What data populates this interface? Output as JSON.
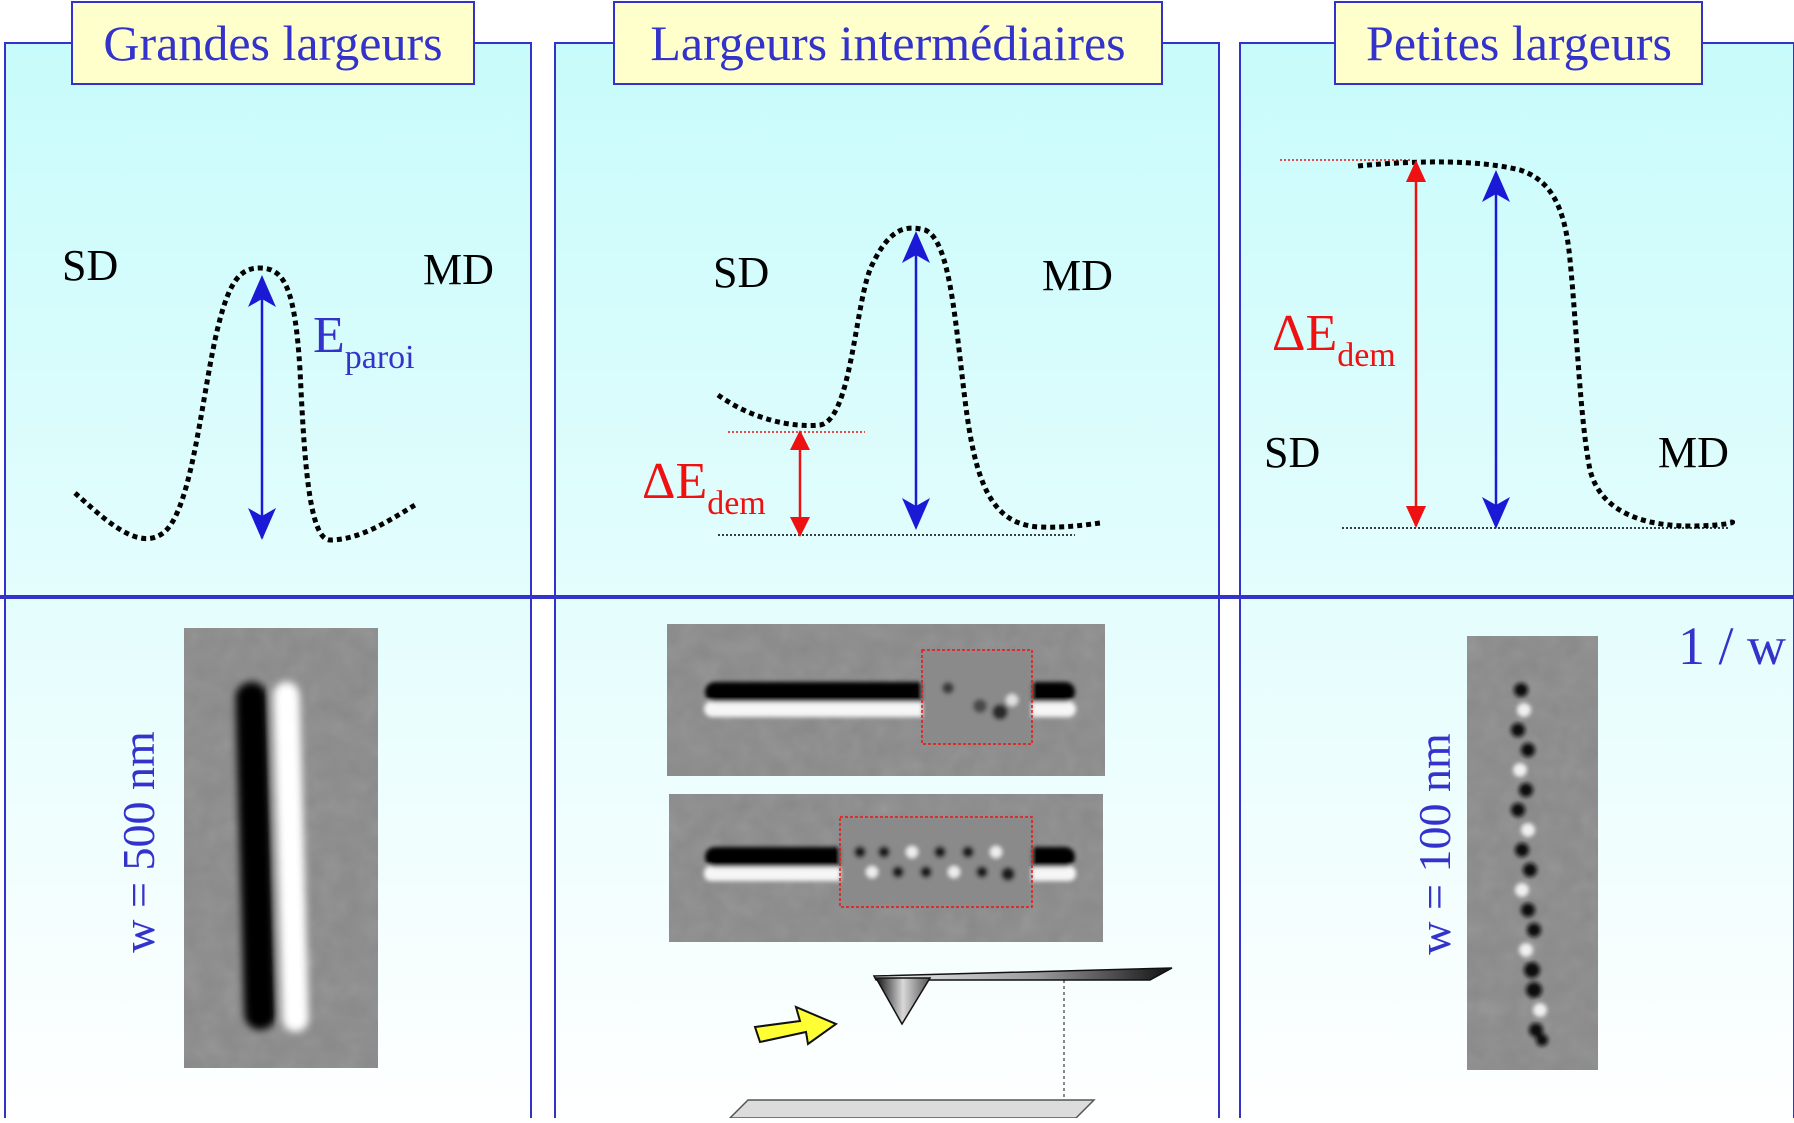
{
  "panels": [
    {
      "title": "Grandes largeurs",
      "left_label": "SD",
      "right_label": "MD",
      "energy_label": {
        "main": "E",
        "sub": "paroi"
      },
      "width_label": "w = 500 nm"
    },
    {
      "title": "Largeurs intermédiaires",
      "left_label": "SD",
      "right_label": "MD",
      "delta_label": {
        "main": "ΔE",
        "sub": "dem"
      }
    },
    {
      "title": "Petites largeurs",
      "left_label": "SD",
      "right_label": "MD",
      "delta_label": {
        "main": "ΔE",
        "sub": "dem"
      },
      "width_label": "w = 100 nm"
    }
  ],
  "axis_label": "1 / w",
  "colors": {
    "frame": "#3333cc",
    "title_text": "#3333cc",
    "title_box": "#ffffcc",
    "bg_top": "#c8fbfb",
    "bg_bottom": "#ffffff",
    "energy_arrow": "#1a1ad6",
    "delta_arrow": "#ee1111",
    "label_text": "#000000",
    "curve": "#000000",
    "mfm_gray": "#8a8a8a",
    "select_arrow": "#ffff33"
  }
}
